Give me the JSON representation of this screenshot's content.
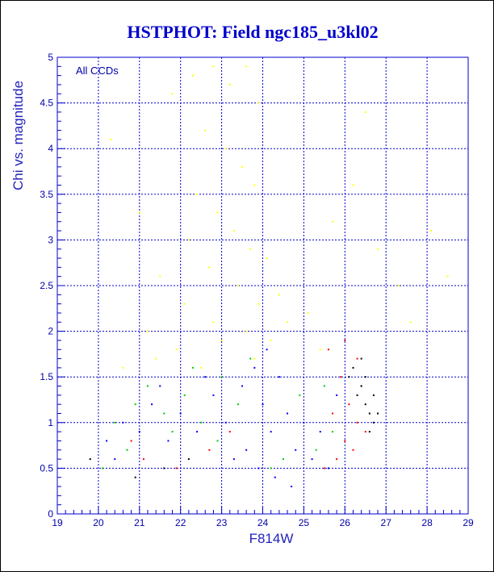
{
  "chart_data": {
    "type": "scatter",
    "title": "HSTPHOT: Field ngc185_u3kl02",
    "xlabel": "F814W",
    "ylabel": "Chi vs. magnitude",
    "annotation": "All CCDs",
    "xlim": [
      19,
      29
    ],
    "ylim": [
      0,
      5
    ],
    "x_ticks": [
      "19",
      "20",
      "21",
      "22",
      "23",
      "24",
      "25",
      "26",
      "27",
      "28",
      "29"
    ],
    "y_ticks": [
      "0",
      "0.5",
      "1",
      "1.5",
      "2",
      "2.5",
      "3",
      "3.5",
      "4",
      "4.5",
      "5"
    ],
    "grid": true,
    "grid_color": "#0000cc",
    "axis_color": "#0000cc",
    "series": [
      {
        "color": "#ffff00",
        "points": [
          [
            21.8,
            4.6
          ],
          [
            22.3,
            4.8
          ],
          [
            22.8,
            4.9
          ],
          [
            23.2,
            4.7
          ],
          [
            23.6,
            4.9
          ],
          [
            23.9,
            4.5
          ],
          [
            22.6,
            4.2
          ],
          [
            23.1,
            4.0
          ],
          [
            23.5,
            3.8
          ],
          [
            23.8,
            3.6
          ],
          [
            22.4,
            3.5
          ],
          [
            22.9,
            3.3
          ],
          [
            23.3,
            3.1
          ],
          [
            23.7,
            2.9
          ],
          [
            24.1,
            2.8
          ],
          [
            22.2,
            3.0
          ],
          [
            22.7,
            2.7
          ],
          [
            23.4,
            2.5
          ],
          [
            23.9,
            2.3
          ],
          [
            24.4,
            2.4
          ],
          [
            21.5,
            2.6
          ],
          [
            22.1,
            2.3
          ],
          [
            22.8,
            2.1
          ],
          [
            23.6,
            2.0
          ],
          [
            24.6,
            2.1
          ],
          [
            21.2,
            2.0
          ],
          [
            21.9,
            1.8
          ],
          [
            23.0,
            1.9
          ],
          [
            24.2,
            1.9
          ],
          [
            25.1,
            2.2
          ],
          [
            20.6,
            1.6
          ],
          [
            21.4,
            1.7
          ],
          [
            22.5,
            1.6
          ],
          [
            23.8,
            1.7
          ],
          [
            25.4,
            1.8
          ],
          [
            26.2,
            3.6
          ],
          [
            26.8,
            2.9
          ],
          [
            27.3,
            2.5
          ],
          [
            25.7,
            3.2
          ],
          [
            28.1,
            3.1
          ],
          [
            20.3,
            4.1
          ],
          [
            21.0,
            3.3
          ],
          [
            26.5,
            4.4
          ],
          [
            27.6,
            2.1
          ],
          [
            28.5,
            2.6
          ]
        ]
      },
      {
        "color": "#0000ff",
        "points": [
          [
            20.2,
            0.8
          ],
          [
            20.6,
            1.0
          ],
          [
            21.0,
            0.9
          ],
          [
            21.3,
            1.2
          ],
          [
            21.7,
            0.8
          ],
          [
            22.0,
            1.1
          ],
          [
            22.4,
            0.9
          ],
          [
            22.8,
            1.3
          ],
          [
            23.1,
            1.0
          ],
          [
            23.5,
            1.4
          ],
          [
            23.8,
            1.6
          ],
          [
            24.0,
            1.2
          ],
          [
            24.2,
            0.9
          ],
          [
            24.4,
            1.5
          ],
          [
            24.6,
            1.1
          ],
          [
            24.8,
            0.7
          ],
          [
            25.0,
            1.0
          ],
          [
            25.2,
            0.6
          ],
          [
            25.4,
            0.9
          ],
          [
            25.6,
            0.5
          ],
          [
            23.9,
            0.5
          ],
          [
            24.3,
            0.4
          ],
          [
            24.7,
            0.3
          ],
          [
            23.6,
            0.7
          ],
          [
            22.6,
            1.5
          ],
          [
            21.5,
            1.4
          ],
          [
            20.4,
            0.6
          ],
          [
            25.8,
            1.3
          ],
          [
            24.1,
            1.8
          ],
          [
            23.3,
            0.6
          ]
        ]
      },
      {
        "color": "#00cc00",
        "points": [
          [
            20.4,
            1.0
          ],
          [
            20.9,
            1.2
          ],
          [
            21.2,
            1.4
          ],
          [
            21.6,
            1.1
          ],
          [
            22.1,
            1.3
          ],
          [
            22.5,
            1.0
          ],
          [
            23.0,
            1.5
          ],
          [
            23.4,
            1.2
          ],
          [
            24.5,
            0.6
          ],
          [
            24.9,
            1.3
          ],
          [
            25.3,
            0.7
          ],
          [
            25.7,
            0.9
          ],
          [
            20.7,
            0.7
          ],
          [
            21.8,
            0.9
          ],
          [
            22.9,
            0.8
          ],
          [
            24.2,
            0.5
          ],
          [
            25.5,
            1.4
          ],
          [
            23.7,
            1.7
          ],
          [
            22.3,
            1.6
          ],
          [
            20.1,
            0.5
          ]
        ]
      },
      {
        "color": "#ff0000",
        "points": [
          [
            25.6,
            1.8
          ],
          [
            25.9,
            1.5
          ],
          [
            26.1,
            1.2
          ],
          [
            26.3,
            1.0
          ],
          [
            26.0,
            0.8
          ],
          [
            25.8,
            0.6
          ],
          [
            26.4,
            1.4
          ],
          [
            26.2,
            0.7
          ],
          [
            25.7,
            1.1
          ],
          [
            26.5,
            0.9
          ],
          [
            21.1,
            0.6
          ],
          [
            21.9,
            0.5
          ],
          [
            22.7,
            0.7
          ],
          [
            23.2,
            0.9
          ],
          [
            20.8,
            0.8
          ],
          [
            26.0,
            1.9
          ],
          [
            25.5,
            0.5
          ],
          [
            26.3,
            1.7
          ]
        ]
      },
      {
        "color": "#000000",
        "points": [
          [
            26.2,
            1.6
          ],
          [
            26.4,
            1.4
          ],
          [
            26.5,
            1.2
          ],
          [
            26.6,
            1.1
          ],
          [
            26.7,
            1.0
          ],
          [
            26.5,
            1.5
          ],
          [
            26.3,
            1.3
          ],
          [
            26.6,
            0.9
          ],
          [
            26.8,
            1.1
          ],
          [
            26.4,
            1.7
          ],
          [
            26.1,
            1.5
          ],
          [
            26.7,
            1.3
          ],
          [
            20.9,
            0.4
          ],
          [
            21.6,
            0.5
          ],
          [
            22.2,
            0.6
          ],
          [
            19.8,
            0.6
          ]
        ]
      }
    ]
  }
}
